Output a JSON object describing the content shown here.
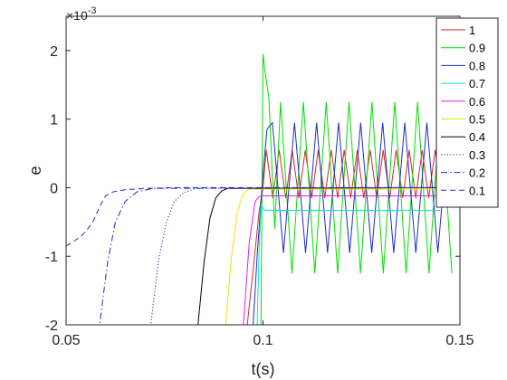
{
  "chart_data": {
    "type": "line",
    "title": "",
    "xlabel": "t(s)",
    "ylabel": "e",
    "exponent_label": "×10",
    "exponent_power": "-3",
    "xlim": [
      0.05,
      0.15
    ],
    "ylim": [
      -2,
      2.5
    ],
    "xticks": [
      0.05,
      0.1,
      0.15
    ],
    "xtick_labels": [
      "0.05",
      "0.1",
      "0.15"
    ],
    "yticks": [
      -2,
      -1,
      0,
      1,
      2
    ],
    "ytick_labels": [
      "-2",
      "-1",
      "0",
      "1",
      "2"
    ],
    "grid": false,
    "legend_position": "top-right",
    "series": [
      {
        "name": "1",
        "color": "#d62728",
        "dash": "solid",
        "x": [
          0.05,
          0.096,
          0.0975,
          0.099,
          0.1
        ],
        "y": [
          -2,
          -2,
          -1.2,
          -0.35,
          0
        ],
        "osc": {
          "start": 0.1,
          "end": 0.15,
          "period": 0.0033,
          "max": 0.55,
          "min": -0.15
        }
      },
      {
        "name": "0.9",
        "color": "#00e000",
        "dash": "solid",
        "x": [
          0.05,
          0.0995,
          0.1,
          0.1005,
          0.1015,
          0.103
        ],
        "y": [
          -2,
          -2,
          1.95,
          1.7,
          1.3,
          -0.6
        ],
        "osc": {
          "start": 0.103,
          "end": 0.15,
          "period": 0.0058,
          "max": 1.25,
          "min": -1.25
        }
      },
      {
        "name": "0.8",
        "color": "#1f2bbf",
        "dash": "solid",
        "x": [
          0.05,
          0.0975,
          0.0985,
          0.0995,
          0.1,
          0.101
        ],
        "y": [
          -2,
          -2,
          -1.0,
          -0.2,
          0.2,
          0.85
        ],
        "osc": {
          "start": 0.101,
          "end": 0.15,
          "period": 0.0056,
          "max": 0.95,
          "min": -0.95
        }
      },
      {
        "name": "0.7",
        "color": "#00e5e5",
        "dash": "solid",
        "x": [
          0.05,
          0.0985,
          0.099,
          0.0995,
          0.1,
          0.1005,
          0.145
        ],
        "y": [
          -2,
          -2,
          -0.9,
          -0.25,
          -0.3,
          -0.33,
          -0.33
        ]
      },
      {
        "name": "0.6",
        "color": "#e020e0",
        "dash": "solid",
        "x": [
          0.05,
          0.095,
          0.0965,
          0.098,
          0.099,
          0.1,
          0.145
        ],
        "y": [
          -2,
          -2,
          -0.8,
          -0.2,
          -0.13,
          -0.12,
          -0.12
        ]
      },
      {
        "name": "0.5",
        "color": "#e8e800",
        "dash": "solid",
        "x": [
          0.05,
          0.0905,
          0.092,
          0.0935,
          0.095,
          0.0965,
          0.145
        ],
        "y": [
          -2,
          -2,
          -1.0,
          -0.35,
          -0.08,
          -0.02,
          -0.02
        ]
      },
      {
        "name": "0.4",
        "color": "#000000",
        "dash": "solid",
        "x": [
          0.05,
          0.0835,
          0.085,
          0.0865,
          0.088,
          0.0895,
          0.091,
          0.145
        ],
        "y": [
          -2,
          -2,
          -1.1,
          -0.45,
          -0.15,
          -0.05,
          -0.01,
          0
        ]
      },
      {
        "name": "0.3",
        "color": "#1f2bbf",
        "dash": "dotted",
        "x": [
          0.05,
          0.0715,
          0.0735,
          0.0755,
          0.0775,
          0.08,
          0.083,
          0.145
        ],
        "y": [
          -2,
          -2,
          -1.05,
          -0.5,
          -0.2,
          -0.07,
          -0.01,
          0
        ]
      },
      {
        "name": "0.2",
        "color": "#1f2bbf",
        "dash": "dashdot",
        "x": [
          0.05,
          0.0585,
          0.0605,
          0.0625,
          0.065,
          0.068,
          0.072,
          0.145
        ],
        "y": [
          -2,
          -2,
          -1.1,
          -0.5,
          -0.2,
          -0.06,
          -0.01,
          0
        ]
      },
      {
        "name": "0.1",
        "color": "#1f2bbf",
        "dash": "dashed",
        "x": [
          0.05,
          0.052,
          0.054,
          0.0555,
          0.057,
          0.0585,
          0.06,
          0.062,
          0.065,
          0.07,
          0.078,
          0.145
        ],
        "y": [
          -0.85,
          -0.78,
          -0.7,
          -0.6,
          -0.48,
          -0.28,
          -0.12,
          -0.06,
          -0.03,
          -0.01,
          0,
          0
        ]
      }
    ]
  }
}
